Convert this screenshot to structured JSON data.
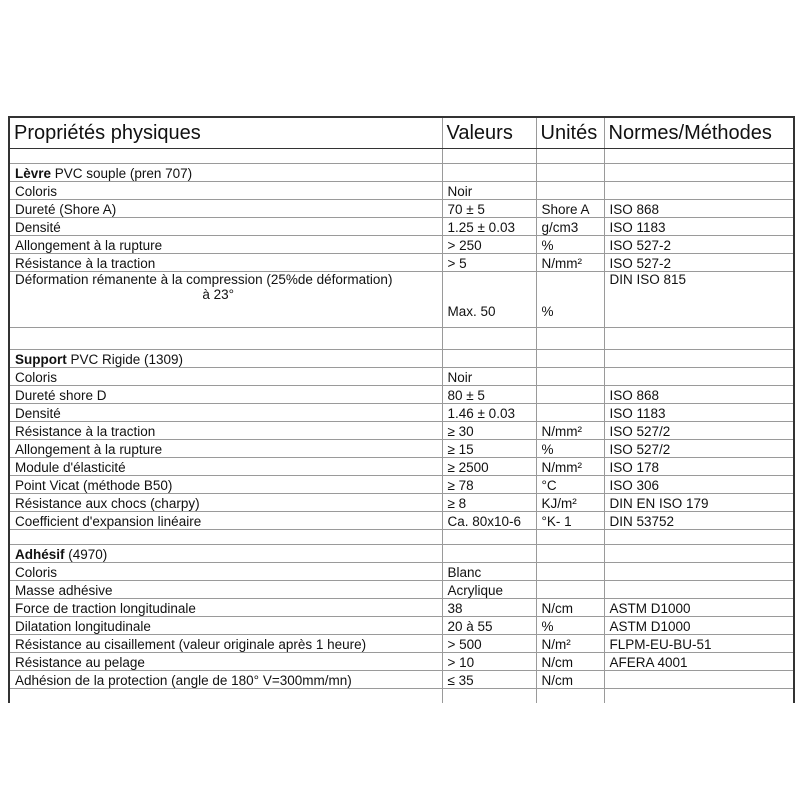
{
  "header": {
    "property": "Propriétés physiques",
    "value": "Valeurs",
    "unit": "Unités",
    "norm": "Normes/Méthodes"
  },
  "rows": [
    {
      "kind": "blank"
    },
    {
      "kind": "section",
      "bold": "Lèvre",
      "rest": " PVC souple (pren 707)"
    },
    {
      "kind": "data",
      "label": "Coloris",
      "value": "Noir",
      "unit": "",
      "norm": ""
    },
    {
      "kind": "data",
      "label": "Dureté  (Shore A)",
      "value": "70 ± 5",
      "unit": "Shore A",
      "norm": "ISO 868"
    },
    {
      "kind": "data",
      "label": "Densité",
      "value": "1.25 ± 0.03",
      "unit": "g/cm3",
      "norm": "ISO 1183"
    },
    {
      "kind": "data",
      "label": "Allongement à la rupture",
      "value": "> 250",
      "unit": "%",
      "norm": "ISO 527-2"
    },
    {
      "kind": "data",
      "label": "Résistance à la traction",
      "value": " > 5",
      "unit": "N/mm²",
      "norm": "ISO 527-2"
    },
    {
      "kind": "tall",
      "label": "Déformation rémanente à la compression (25%de déformation)",
      "label2": "à 23°",
      "value": "Max. 50",
      "unit": "%",
      "norm": "DIN ISO 815"
    },
    {
      "kind": "blank big"
    },
    {
      "kind": "section",
      "bold": "Support",
      "rest": " PVC Rigide (1309)"
    },
    {
      "kind": "data",
      "label": "Coloris",
      "value": "Noir",
      "unit": "",
      "norm": ""
    },
    {
      "kind": "data",
      "label": "Dureté shore D",
      "value": "80 ± 5",
      "unit": "",
      "norm": "ISO 868"
    },
    {
      "kind": "data",
      "label": "Densité",
      "value": "1.46 ± 0.03",
      "unit": "",
      "norm": "ISO 1183"
    },
    {
      "kind": "data",
      "label": "Résistance à la traction",
      "value": "≥ 30",
      "unit": "N/mm²",
      "norm": "ISO 527/2"
    },
    {
      "kind": "data",
      "label": "Allongement à la rupture",
      "value": "≥ 15",
      "unit": "%",
      "norm": "ISO 527/2"
    },
    {
      "kind": "data",
      "label": "Module d'élasticité",
      "value": "≥ 2500",
      "unit": "N/mm²",
      "norm": "ISO 178"
    },
    {
      "kind": "data",
      "label": "Point Vicat (méthode B50)",
      "value": "≥ 78",
      "unit": "°C",
      "norm": "ISO 306"
    },
    {
      "kind": "data",
      "label": "Résistance aux chocs (charpy)",
      "value": "≥ 8",
      "unit": "KJ/m²",
      "norm": "DIN EN ISO 179"
    },
    {
      "kind": "data",
      "label": "Coefficient d'expansion linéaire",
      "value": "Ca. 80x10-6",
      "unit": "°K- 1",
      "norm": "DIN 53752"
    },
    {
      "kind": "blank"
    },
    {
      "kind": "section",
      "bold": "Adhésif",
      "rest": " (4970)"
    },
    {
      "kind": "data",
      "label": "Coloris",
      "value": "Blanc",
      "unit": "",
      "norm": ""
    },
    {
      "kind": "data",
      "label": "Masse adhésive",
      "value": "Acrylique",
      "unit": "",
      "norm": ""
    },
    {
      "kind": "data",
      "label": "Force de traction longitudinale",
      "value": "38",
      "unit": "N/cm",
      "norm": "ASTM D1000"
    },
    {
      "kind": "data",
      "label": "Dilatation longitudinale",
      "value": "20 à 55",
      "unit": "%",
      "norm": "ASTM D1000"
    },
    {
      "kind": "data",
      "label": "Résistance au cisaillement (valeur originale après 1 heure)",
      "value": "> 500",
      "unit": "N/m²",
      "norm": "FLPM-EU-BU-51"
    },
    {
      "kind": "data",
      "label": "Résistance au pelage",
      "value": "> 10",
      "unit": "N/cm",
      "norm": "AFERA 4001"
    },
    {
      "kind": "data",
      "label": "Adhésion de la protection (angle de 180°  V=300mm/mn)",
      "value": "≤ 35",
      "unit": "N/cm",
      "norm": ""
    },
    {
      "kind": "blank last"
    }
  ]
}
